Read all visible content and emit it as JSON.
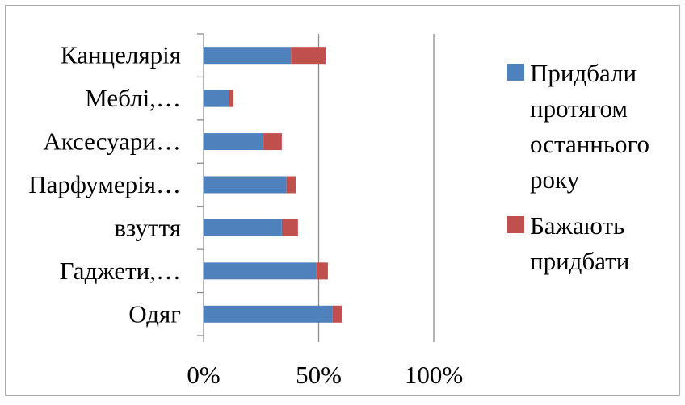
{
  "chart_data": {
    "type": "bar",
    "orientation": "horizontal",
    "stacked": true,
    "categories": [
      "Канцелярія",
      "Меблі,…",
      "Аксесуари…",
      "Парфумерія…",
      "взуття",
      "Гаджети,…",
      "Одяг"
    ],
    "series": [
      {
        "name": "Придбали протягом останнього року",
        "color": "#4f81bd",
        "values": [
          38,
          11,
          26,
          36,
          34,
          49,
          56
        ]
      },
      {
        "name": "Бажають придбати",
        "color": "#c0504d",
        "values": [
          15,
          2,
          8,
          4,
          7,
          5,
          4
        ]
      }
    ],
    "xlim": [
      0,
      100
    ],
    "x_ticks": [
      "0%",
      "50%",
      "100%"
    ],
    "title": "",
    "xlabel": "",
    "ylabel": "",
    "grid": "vertical",
    "legend": "right",
    "legend_lines": [
      [
        "Придбали",
        "протягом",
        "останнього",
        "року"
      ],
      [
        "Бажають",
        "придбати"
      ]
    ]
  }
}
